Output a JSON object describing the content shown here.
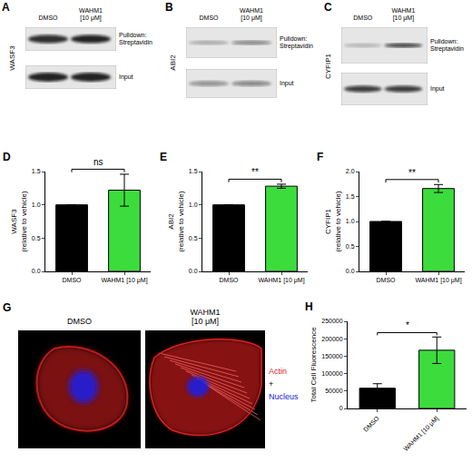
{
  "chart_data": [
    {
      "panel": "D",
      "type": "bar",
      "categories": [
        "DMSO",
        "WAHM1 [10 μM]"
      ],
      "values": [
        1.0,
        1.22
      ],
      "errors": [
        0,
        0.24
      ],
      "colors": [
        "#000000",
        "#3ddc3d"
      ],
      "y_label": "WASF3\n(relative to vehicle)",
      "ylim": [
        0,
        1.5
      ],
      "yticks": [
        {
          "value": 0,
          "label": "0.0"
        },
        0.5,
        {
          "value": 1,
          "label": "1.0"
        },
        1.5
      ],
      "annotations": [
        {
          "text": "ns",
          "from": 0,
          "to": 1
        }
      ]
    },
    {
      "panel": "E",
      "type": "bar",
      "categories": [
        "DMSO",
        "WAHM1 [10 μM]"
      ],
      "values": [
        1.0,
        1.28
      ],
      "errors": [
        0,
        0.03
      ],
      "colors": [
        "#000000",
        "#3ddc3d"
      ],
      "y_label": "ABI2\n(relative to vehicle)",
      "ylim": [
        0,
        1.5
      ],
      "yticks": [
        {
          "value": 0,
          "label": "0.0"
        },
        0.5,
        {
          "value": 1,
          "label": "1.0"
        },
        1.5
      ],
      "annotations": [
        {
          "text": "**",
          "from": 0,
          "to": 1
        }
      ]
    },
    {
      "panel": "F",
      "type": "bar",
      "categories": [
        "DMSO",
        "WAHM1 [10 μM]"
      ],
      "values": [
        1.0,
        1.66
      ],
      "errors": [
        0,
        0.08
      ],
      "colors": [
        "#000000",
        "#3ddc3d"
      ],
      "y_label": "CYFIP1\n(relative to vehicle)",
      "ylim": [
        0,
        2
      ],
      "yticks": [
        {
          "value": 0,
          "label": "0.0"
        },
        0.5,
        {
          "value": 1,
          "label": "1.0"
        },
        1.5,
        {
          "value": 2,
          "label": "2.0"
        }
      ],
      "annotations": [
        {
          "text": "**",
          "from": 0,
          "to": 1
        }
      ]
    },
    {
      "panel": "H",
      "type": "bar",
      "categories": [
        "DMSO",
        "WAHM1 [10 μM]"
      ],
      "values": [
        58000,
        167000
      ],
      "errors": [
        13000,
        38000
      ],
      "colors": [
        "#000000",
        "#3ddc3d"
      ],
      "y_label": "Total Cell Fluorescence",
      "ylim": [
        0,
        250000
      ],
      "yticks": [
        0,
        50000,
        100000,
        150000,
        200000,
        250000
      ],
      "annotations": [
        {
          "text": "*",
          "from": 0,
          "to": 1
        }
      ]
    }
  ],
  "blots": [
    {
      "panel": "A",
      "protein": "WASF3",
      "columns": [
        "DMSO",
        "WAHM1\n[10 μM]"
      ],
      "rows": [
        "Pulldown:\nStreptavidin",
        "Input"
      ]
    },
    {
      "panel": "B",
      "protein": "ABI2",
      "columns": [
        "DMSO",
        "WAHM1\n[10 μM]"
      ],
      "rows": [
        "Pulldown:\nStreptavidin",
        "Input"
      ]
    },
    {
      "panel": "C",
      "protein": "CYFIP1",
      "columns": [
        "DMSO",
        "WAHM1\n[10 μM]"
      ],
      "rows": [
        "Pulldown:\nStreptavidin",
        "Input"
      ]
    }
  ],
  "micrographs": {
    "panel": "G",
    "columns": [
      "DMSO",
      "WAHM1\n[10 μM]"
    ],
    "legend": [
      {
        "text": "Actin",
        "color": "#e02020"
      },
      {
        "text": "+",
        "color": "#000000"
      },
      {
        "text": "Nucleus",
        "color": "#2020e0"
      }
    ]
  }
}
